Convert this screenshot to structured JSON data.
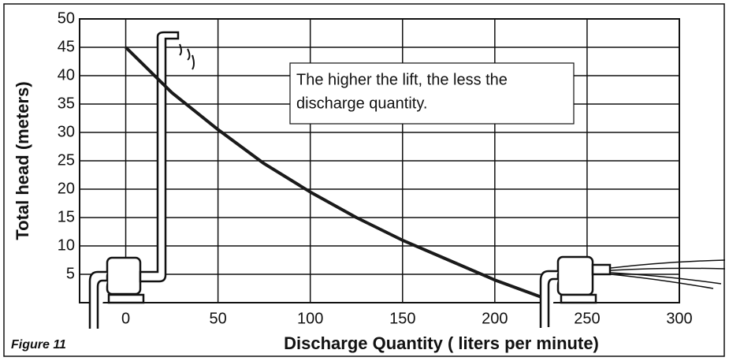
{
  "chart_data": {
    "type": "line",
    "title": "Figure 11",
    "x_label": "Discharge Quantity ( liters per minute)",
    "y_label": "Total head (meters)",
    "annotation": [
      "The higher the lift, the less the",
      "discharge quantity."
    ],
    "x": [
      0,
      25,
      50,
      75,
      100,
      125,
      150,
      175,
      200,
      225
    ],
    "values": [
      45,
      37,
      30.5,
      24.5,
      19.5,
      15,
      11,
      7.5,
      4,
      1
    ],
    "color": "#1a1a1a",
    "xlim": [
      -25,
      300
    ],
    "xticks": [
      0,
      50,
      100,
      150,
      200,
      250,
      300
    ],
    "ylim": [
      0,
      50
    ],
    "yticks": [
      5,
      10,
      15,
      20,
      25,
      30,
      35,
      40,
      45,
      50
    ],
    "grid": true
  }
}
